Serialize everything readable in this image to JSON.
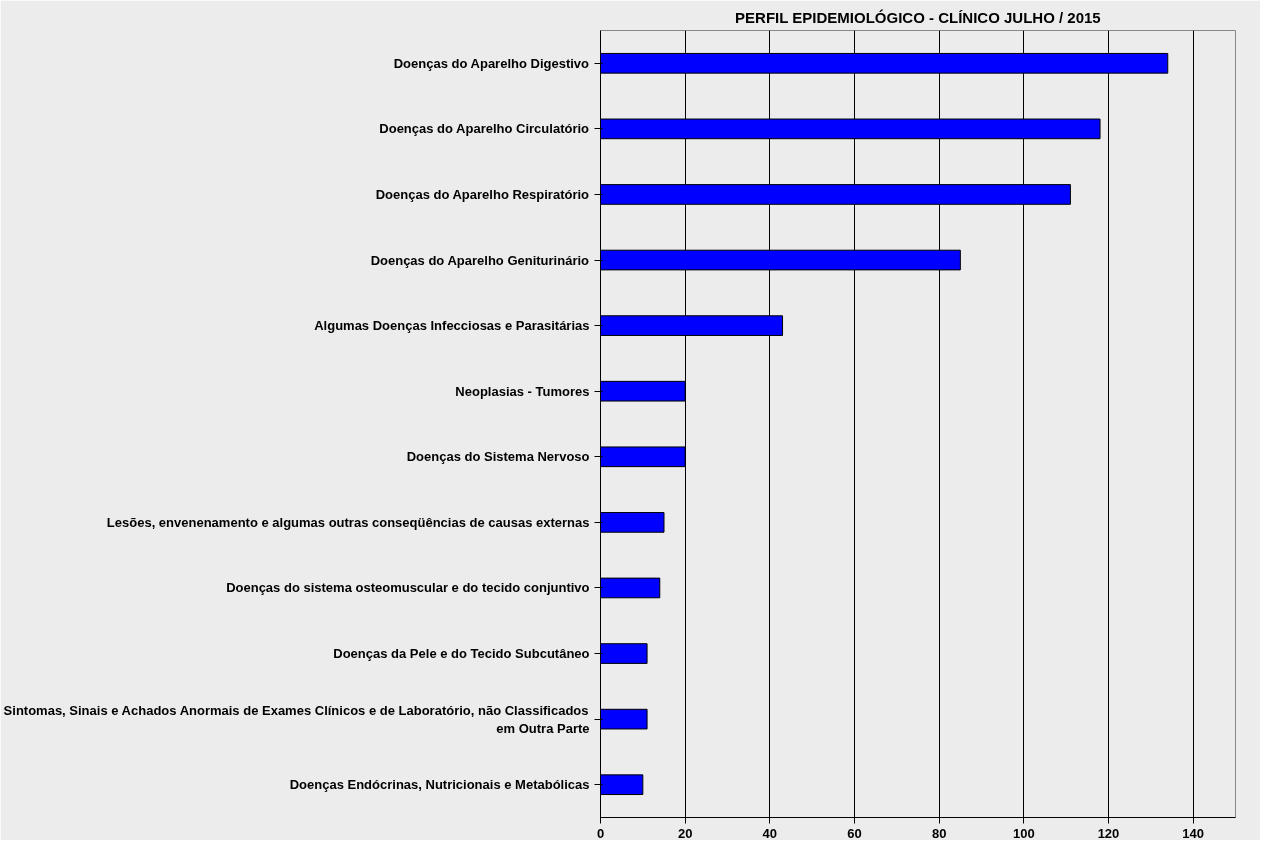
{
  "chart_data": {
    "type": "bar",
    "orientation": "horizontal",
    "title": "PERFIL EPIDEMIOLÓGICO - CLÍNICO JULHO / 2015",
    "categories": [
      "Doenças do Aparelho Digestivo",
      "Doenças do Aparelho Circulatório",
      "Doenças do Aparelho Respiratório",
      "Doenças do Aparelho Geniturinário",
      "Algumas Doenças Infecciosas e Parasitárias",
      "Neoplasias - Tumores",
      "Doenças do Sistema Nervoso",
      "Lesões, envenenamento e algumas outras conseqüências de causas externas",
      "Doenças do sistema osteomuscular e do tecido conjuntivo",
      "Doenças da Pele e do Tecido Subcutâneo",
      "Sintomas, Sinais e Achados Anormais de Exames Clínicos e de Laboratório, não Classificados em Outra Parte",
      "Doenças Endócrinas, Nutricionais e Metabólicas"
    ],
    "values": [
      134,
      118,
      111,
      85,
      43,
      20,
      20,
      15,
      14,
      11,
      11,
      10
    ],
    "color": "#0000ff",
    "xlim": [
      0,
      150
    ],
    "xticks": [
      0,
      20,
      40,
      60,
      80,
      100,
      120,
      140
    ],
    "grid": "x"
  }
}
